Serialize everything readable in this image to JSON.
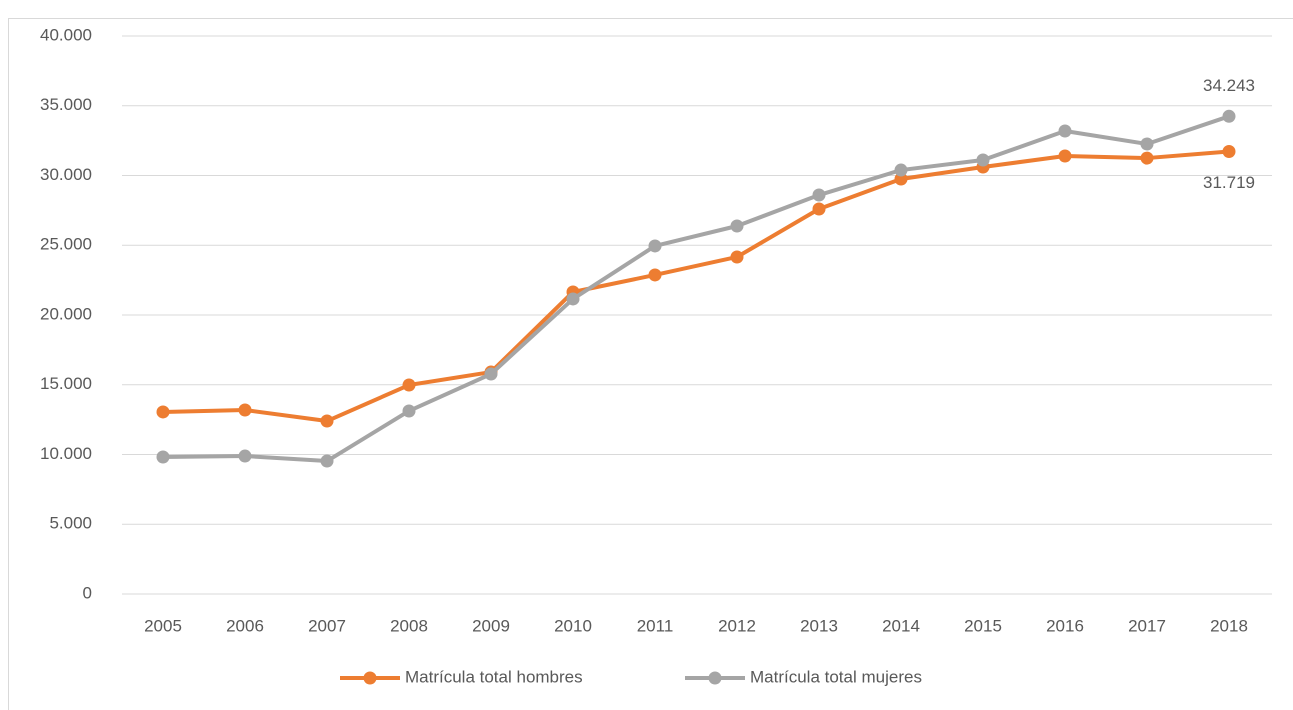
{
  "chart_data": {
    "type": "line",
    "x": [
      2005,
      2006,
      2007,
      2008,
      2009,
      2010,
      2011,
      2012,
      2013,
      2014,
      2015,
      2016,
      2017,
      2018
    ],
    "series": [
      {
        "name": "Matrícula total hombres",
        "color": "#ed7d31",
        "values": [
          13050,
          13190,
          12400,
          14980,
          15910,
          21650,
          22870,
          24160,
          27600,
          29750,
          30610,
          31400,
          31250,
          31719
        ],
        "value_labels": [
          null,
          null,
          null,
          null,
          null,
          null,
          null,
          null,
          null,
          null,
          null,
          null,
          null,
          "31.719"
        ]
      },
      {
        "name": "Matrícula total mujeres",
        "color": "#a5a5a5",
        "values": [
          9820,
          9890,
          9530,
          13120,
          15770,
          21150,
          24950,
          26380,
          28600,
          30390,
          31110,
          33190,
          32260,
          34243
        ],
        "value_labels": [
          null,
          null,
          null,
          null,
          null,
          null,
          null,
          null,
          null,
          null,
          null,
          null,
          null,
          "34.243"
        ]
      }
    ],
    "xlim": [
      2005,
      2018
    ],
    "ylim": [
      0,
      40000
    ],
    "yticks": [
      0,
      {
        "value": 5000,
        "label": "5.000"
      },
      {
        "value": 10000,
        "label": "10.000"
      },
      {
        "value": 15000,
        "label": "15.000"
      },
      {
        "value": 20000,
        "label": "20.000"
      },
      {
        "value": 25000,
        "label": "25.000"
      },
      {
        "value": 30000,
        "label": "30.000"
      },
      {
        "value": 35000,
        "label": "35.000"
      },
      {
        "value": 40000,
        "label": "40.000"
      }
    ],
    "grid": true,
    "legend": "bottom"
  }
}
